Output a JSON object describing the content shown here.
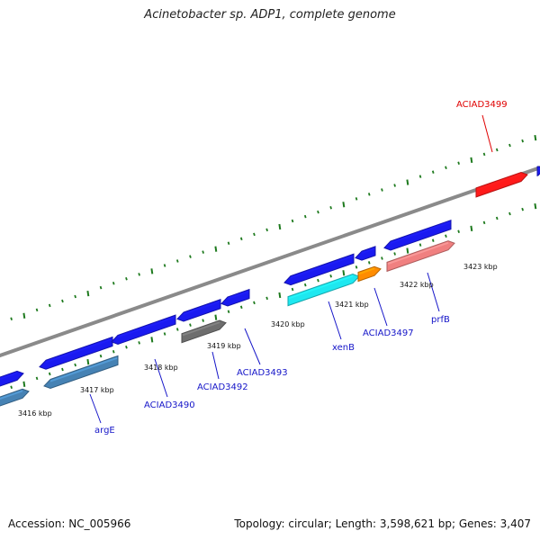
{
  "title": "Acinetobacter sp. ADP1, complete genome",
  "footer": {
    "accession": "Accession: NC_005966",
    "summary": "Topology: circular; Length: 3,598,621 bp; Genes: 3,407"
  },
  "ruler_labels": [
    "3416 kbp",
    "3417 kbp",
    "3418 kbp",
    "3419 kbp",
    "3420 kbp",
    "3421 kbp",
    "3422 kbp",
    "3423 kbp"
  ],
  "gene_labels": [
    "ACIAD3499",
    "argE",
    "ACIAD3490",
    "ACIAD3492",
    "ACIAD3493",
    "xenB",
    "ACIAD3497",
    "prfB"
  ],
  "colors": {
    "backbone": "#8a8a8a",
    "ticks": "#1e7a1e",
    "cds_forward": "#1a1af0",
    "argE": "#4682b4",
    "ACIAD3492": "#6e6e6e",
    "xenB": "#1ee8f0",
    "ACIAD3497": "#ff8c00",
    "prfB": "#f08080",
    "ACIAD3499": "#ff1a1a",
    "label_blue": "#1515c8",
    "label_red": "#e00000"
  }
}
